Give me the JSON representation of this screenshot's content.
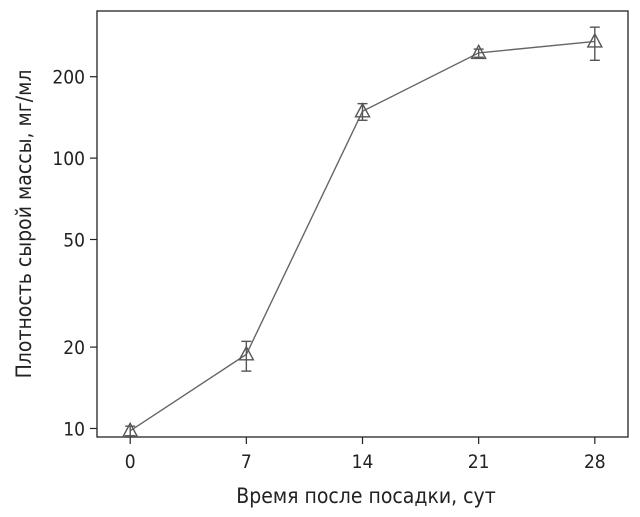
{
  "chart_data": {
    "type": "line",
    "xlabel": "Время после посадки, сут",
    "ylabel": "Плотность сырой массы, мг/мл",
    "y_scale": "log",
    "xlim": [
      -2,
      30
    ],
    "ylim": [
      9.3,
      350
    ],
    "x_ticks": [
      0,
      7,
      14,
      21,
      28
    ],
    "y_ticks": [
      10,
      20,
      50,
      100,
      200
    ],
    "grid": false,
    "legend": "none",
    "marker": "open-triangle",
    "series": [
      {
        "x": [
          0,
          7,
          14,
          21,
          28
        ],
        "y": [
          9.8,
          18.8,
          149,
          245,
          270
        ],
        "err_low": [
          9.4,
          16.3,
          138,
          236,
          230
        ],
        "err_high": [
          10.2,
          21.0,
          159,
          253,
          305
        ]
      }
    ],
    "colors": {
      "line": "#666666",
      "marker": "#555555",
      "axis": "#222222"
    }
  }
}
